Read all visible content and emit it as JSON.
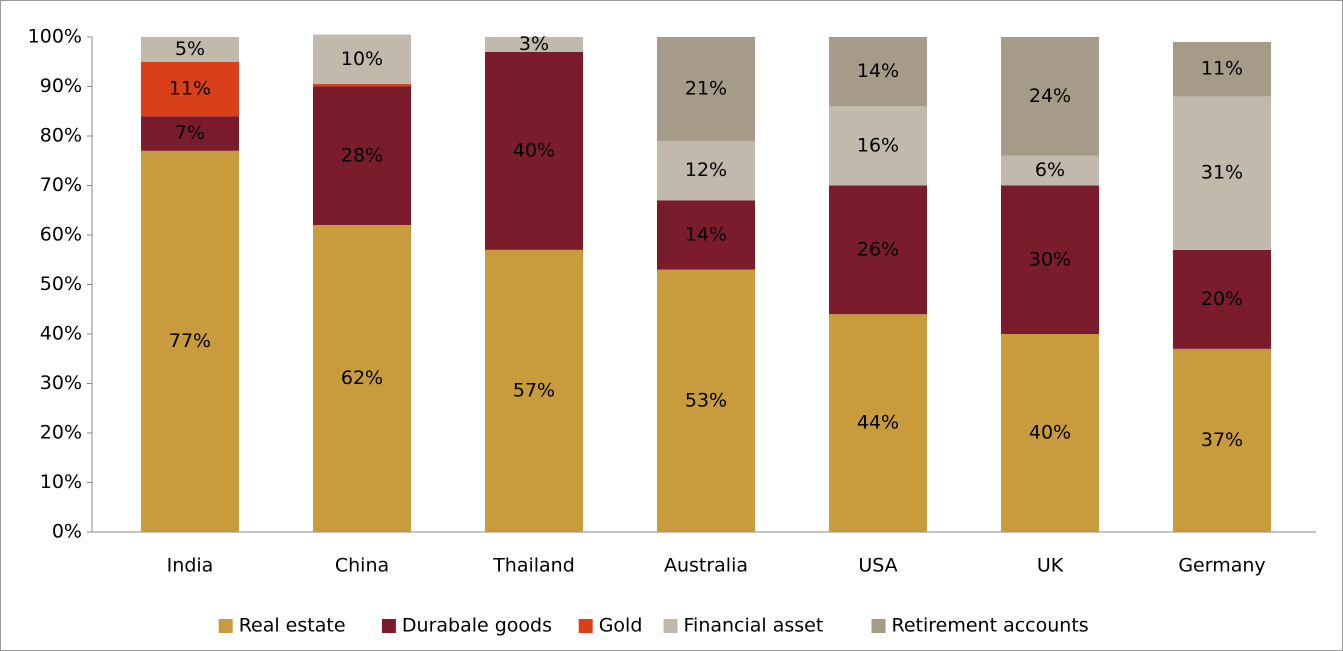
{
  "chart_data": {
    "type": "stacked_bar",
    "categories": [
      "India",
      "China",
      "Thailand",
      "Australia",
      "USA",
      "UK",
      "Germany"
    ],
    "series": [
      {
        "name": "Real estate",
        "color": "#c89b3c",
        "values": [
          77,
          62,
          57,
          53,
          44,
          40,
          37
        ],
        "value_labels": [
          "77%",
          "62%",
          "57%",
          "53%",
          "44%",
          "40%",
          "37%"
        ]
      },
      {
        "name": "Durabale goods",
        "color": "#7b1c2c",
        "values": [
          7,
          28,
          40,
          14,
          26,
          30,
          20
        ],
        "value_labels": [
          "7%",
          "28%",
          "40%",
          "14%",
          "26%",
          "30%",
          "20%"
        ]
      },
      {
        "name": "Gold",
        "color": "#d9401a",
        "values": [
          11,
          0.5,
          null,
          null,
          null,
          null,
          null
        ],
        "value_labels": [
          "11%",
          null,
          null,
          null,
          null,
          null,
          null
        ]
      },
      {
        "name": "Financial asset",
        "color": "#c1b9ac",
        "values": [
          5,
          10,
          3,
          12,
          16,
          6,
          31
        ],
        "value_labels": [
          "5%",
          "10%",
          "3%",
          "12%",
          "16%",
          "6%",
          "31%"
        ]
      },
      {
        "name": "Retirement accounts",
        "color": "#a69a88",
        "values": [
          null,
          null,
          null,
          21,
          14,
          24,
          11
        ],
        "value_labels": [
          null,
          null,
          null,
          "21%",
          "14%",
          "24%",
          "11%"
        ]
      }
    ],
    "ylim": [
      0,
      100
    ],
    "yticks": [
      {
        "value": 0,
        "label": "0%"
      },
      {
        "value": 10,
        "label": "10%"
      },
      {
        "value": 20,
        "label": "20%"
      },
      {
        "value": 30,
        "label": "30%"
      },
      {
        "value": 40,
        "label": "40%"
      },
      {
        "value": 50,
        "label": "50%"
      },
      {
        "value": 60,
        "label": "60%"
      },
      {
        "value": 70,
        "label": "70%"
      },
      {
        "value": 80,
        "label": "80%"
      },
      {
        "value": 90,
        "label": "90%"
      },
      {
        "value": 100,
        "label": "100%"
      }
    ],
    "legend": "bottom"
  }
}
